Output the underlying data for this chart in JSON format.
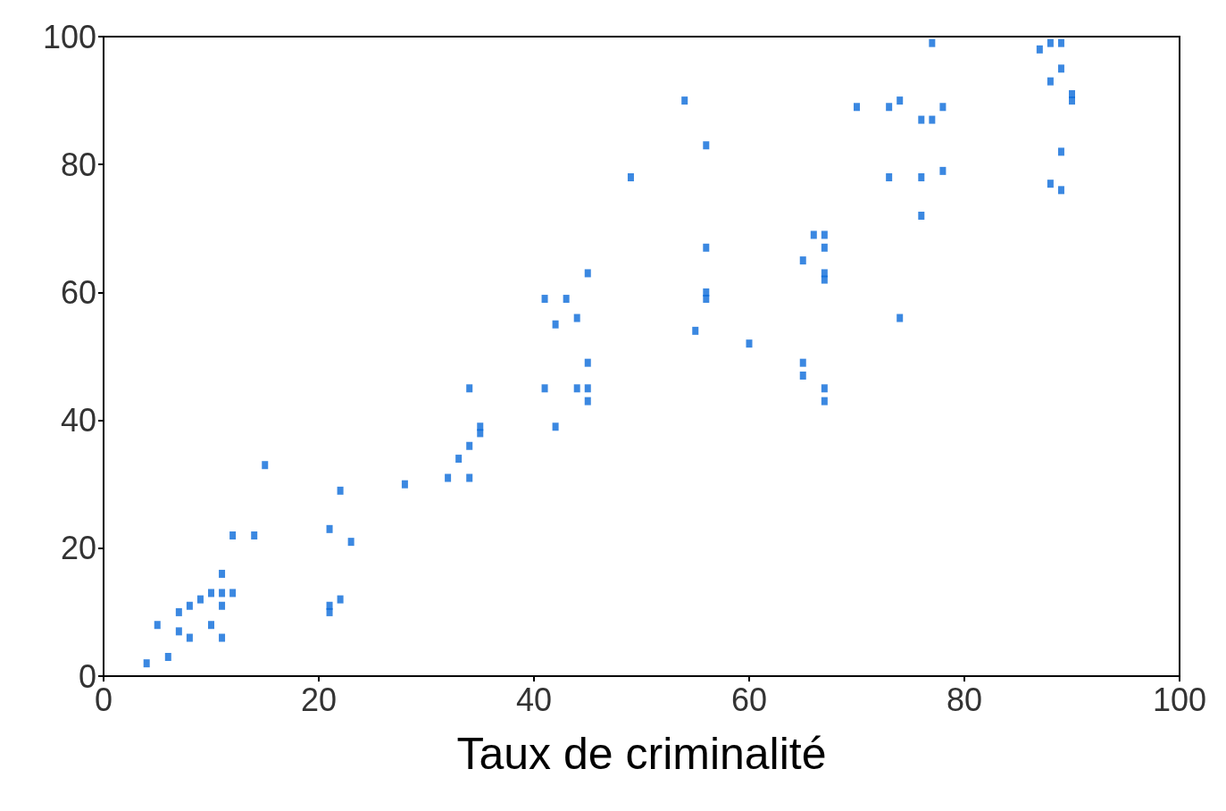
{
  "chart_data": {
    "type": "scatter",
    "xlabel": "Taux de criminalité",
    "xlim": [
      0,
      100
    ],
    "xticks": [
      0,
      20,
      40,
      60,
      80,
      100
    ],
    "ylim": [
      0,
      100
    ],
    "yticks": [
      0,
      20,
      40,
      60,
      80,
      100
    ],
    "grid": false,
    "marker": "square",
    "series": [
      {
        "color": "#0a6ad9",
        "x": [
          4,
          6,
          5,
          7,
          7,
          8,
          8,
          9,
          10,
          10,
          11,
          11,
          11,
          11,
          12,
          12,
          14,
          15,
          21,
          21,
          21,
          22,
          22,
          23,
          28,
          32,
          33,
          34,
          34,
          34,
          35,
          35,
          41,
          41,
          42,
          42,
          43,
          44,
          44,
          45,
          45,
          45,
          45,
          49,
          54,
          55,
          56,
          56,
          56,
          56,
          60,
          65,
          65,
          65,
          66,
          67,
          67,
          67,
          67,
          67,
          67,
          70,
          73,
          73,
          74,
          74,
          76,
          76,
          76,
          77,
          77,
          78,
          78,
          87,
          88,
          88,
          88,
          89,
          89,
          89,
          89,
          90,
          90
        ],
        "values": [
          2,
          3,
          8,
          10,
          7,
          11,
          6,
          12,
          13,
          8,
          16,
          13,
          11,
          6,
          13,
          22,
          22,
          33,
          23,
          11,
          10,
          29,
          12,
          21,
          30,
          31,
          34,
          36,
          31,
          45,
          39,
          38,
          59,
          45,
          55,
          39,
          59,
          56,
          45,
          63,
          49,
          45,
          43,
          78,
          90,
          54,
          83,
          67,
          60,
          59,
          52,
          65,
          49,
          47,
          69,
          69,
          67,
          63,
          62,
          45,
          43,
          89,
          89,
          78,
          90,
          56,
          87,
          78,
          72,
          87,
          99,
          89,
          79,
          98,
          99,
          93,
          77,
          99,
          95,
          82,
          76,
          91,
          90
        ]
      }
    ]
  }
}
